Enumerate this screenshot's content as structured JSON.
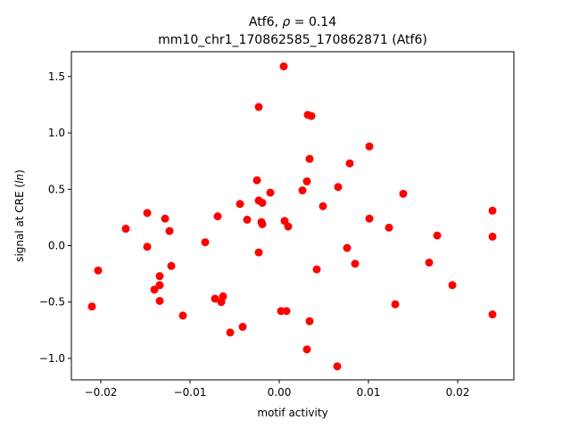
{
  "chart_data": {
    "type": "scatter",
    "title": {
      "line1_prefix": "Atf6, ",
      "line1_rho": "ρ",
      "line1_suffix": " = 0.14",
      "line2": "mm10_chr1_170862585_170862871 (Atf6)"
    },
    "xlabel": "motif activity",
    "ylabel": {
      "prefix": "signal at CRE (",
      "var": "ln",
      "suffix": ")"
    },
    "xlim": [
      -0.0233,
      0.0263
    ],
    "ylim": [
      -1.19,
      1.72
    ],
    "xticks": [
      {
        "value": -0.02,
        "label": "−0.02"
      },
      {
        "value": -0.01,
        "label": "−0.01"
      },
      {
        "value": 0.0,
        "label": "0.00"
      },
      {
        "value": 0.01,
        "label": "0.01"
      },
      {
        "value": 0.02,
        "label": "0.02"
      }
    ],
    "yticks": [
      {
        "value": -1.0,
        "label": "−1.0"
      },
      {
        "value": -0.5,
        "label": "−0.5"
      },
      {
        "value": 0.0,
        "label": "0.0"
      },
      {
        "value": 0.5,
        "label": "0.5"
      },
      {
        "value": 1.0,
        "label": "1.0"
      },
      {
        "value": 1.5,
        "label": "1.5"
      }
    ],
    "grid": false,
    "marker_color": "#ff0000",
    "points": [
      {
        "x": -0.021,
        "y": -0.54
      },
      {
        "x": -0.0203,
        "y": -0.22
      },
      {
        "x": -0.0172,
        "y": 0.15
      },
      {
        "x": -0.0148,
        "y": 0.29
      },
      {
        "x": -0.0148,
        "y": -0.01
      },
      {
        "x": -0.014,
        "y": -0.39
      },
      {
        "x": -0.0134,
        "y": -0.27
      },
      {
        "x": -0.0134,
        "y": -0.35
      },
      {
        "x": -0.0134,
        "y": -0.49
      },
      {
        "x": -0.0128,
        "y": 0.24
      },
      {
        "x": -0.0123,
        "y": 0.13
      },
      {
        "x": -0.0121,
        "y": -0.18
      },
      {
        "x": -0.0108,
        "y": -0.62
      },
      {
        "x": -0.0083,
        "y": 0.03
      },
      {
        "x": -0.0072,
        "y": -0.47
      },
      {
        "x": -0.0069,
        "y": 0.26
      },
      {
        "x": -0.0065,
        "y": -0.5
      },
      {
        "x": -0.0063,
        "y": -0.45
      },
      {
        "x": -0.0055,
        "y": -0.77
      },
      {
        "x": -0.0044,
        "y": 0.37
      },
      {
        "x": -0.0041,
        "y": -0.72
      },
      {
        "x": -0.0036,
        "y": 0.23
      },
      {
        "x": -0.0025,
        "y": 0.58
      },
      {
        "x": -0.0023,
        "y": 1.23
      },
      {
        "x": -0.0023,
        "y": 0.4
      },
      {
        "x": -0.0023,
        "y": -0.06
      },
      {
        "x": -0.002,
        "y": 0.21
      },
      {
        "x": -0.0019,
        "y": 0.38
      },
      {
        "x": -0.0019,
        "y": 0.19
      },
      {
        "x": -0.001,
        "y": 0.47
      },
      {
        "x": 0.0002,
        "y": -0.58
      },
      {
        "x": 0.0005,
        "y": 1.59
      },
      {
        "x": 0.0006,
        "y": 0.22
      },
      {
        "x": 0.0008,
        "y": -0.58
      },
      {
        "x": 0.001,
        "y": 0.17
      },
      {
        "x": 0.0026,
        "y": 0.49
      },
      {
        "x": 0.0031,
        "y": 0.57
      },
      {
        "x": 0.0031,
        "y": -0.92
      },
      {
        "x": 0.0032,
        "y": 1.16
      },
      {
        "x": 0.0034,
        "y": 0.77
      },
      {
        "x": 0.0034,
        "y": -0.67
      },
      {
        "x": 0.0036,
        "y": 1.15
      },
      {
        "x": 0.0042,
        "y": -0.21
      },
      {
        "x": 0.0049,
        "y": 0.35
      },
      {
        "x": 0.0065,
        "y": -1.07
      },
      {
        "x": 0.0066,
        "y": 0.52
      },
      {
        "x": 0.0076,
        "y": -0.02
      },
      {
        "x": 0.0079,
        "y": 0.73
      },
      {
        "x": 0.0085,
        "y": -0.16
      },
      {
        "x": 0.0101,
        "y": 0.88
      },
      {
        "x": 0.0101,
        "y": 0.24
      },
      {
        "x": 0.0123,
        "y": 0.16
      },
      {
        "x": 0.013,
        "y": -0.52
      },
      {
        "x": 0.0139,
        "y": 0.46
      },
      {
        "x": 0.0168,
        "y": -0.15
      },
      {
        "x": 0.0177,
        "y": 0.09
      },
      {
        "x": 0.0194,
        "y": -0.35
      },
      {
        "x": 0.0239,
        "y": 0.31
      },
      {
        "x": 0.0239,
        "y": 0.08
      },
      {
        "x": 0.0239,
        "y": -0.61
      }
    ]
  }
}
